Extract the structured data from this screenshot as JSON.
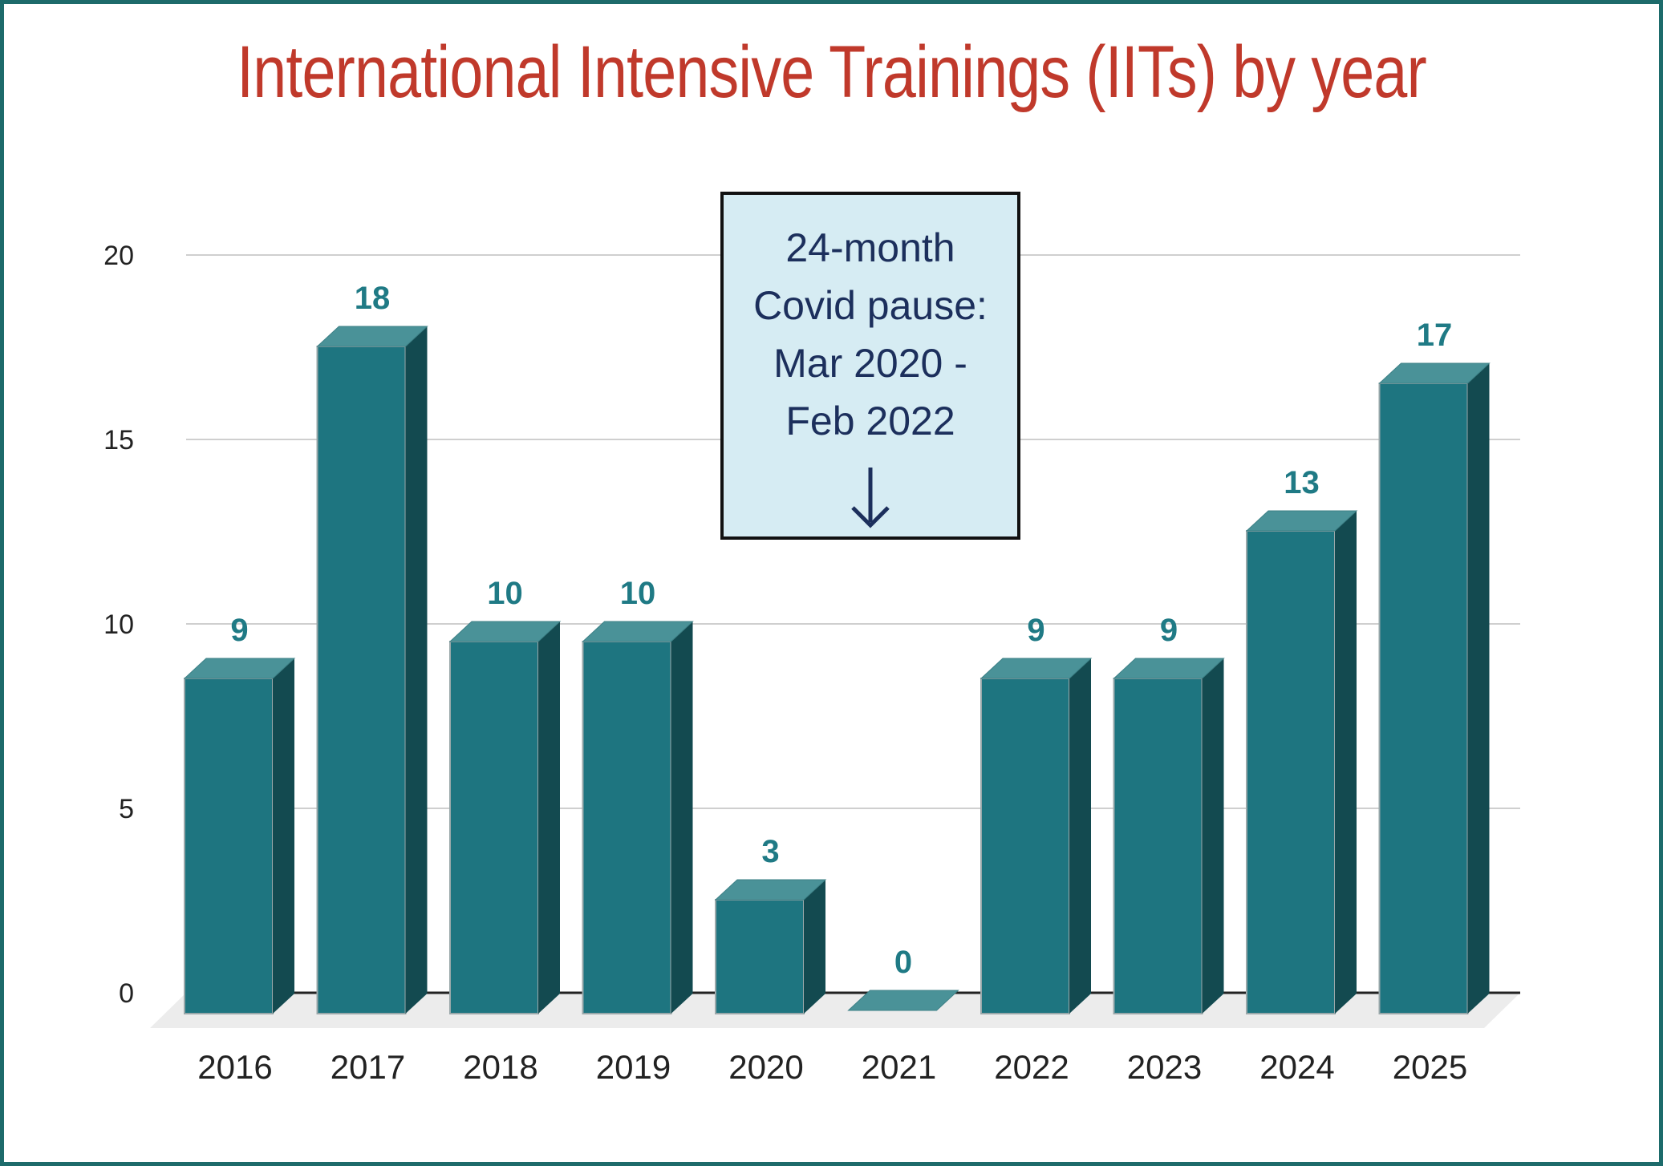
{
  "title": "International Intensive Trainings (IITs) by year",
  "annotation": {
    "text": "24-month\nCovid pause:\nMar 2020 -\nFeb 2022"
  },
  "colors": {
    "title": "#c0392b",
    "bar_front": "#1e7580",
    "bar_top": "#4a9298",
    "bar_side": "#134a50",
    "data_label": "#1f7a85",
    "annotation_fill": "#d6ecf3",
    "annotation_text": "#1c2f5c",
    "frame": "#1d6b6b"
  },
  "chart_data": {
    "type": "bar",
    "title": "International Intensive Trainings (IITs) by year",
    "categories": [
      "2016",
      "2017",
      "2018",
      "2019",
      "2020",
      "2021",
      "2022",
      "2023",
      "2024",
      "2025"
    ],
    "values": [
      9,
      18,
      10,
      10,
      3,
      0,
      9,
      9,
      13,
      17
    ],
    "data_labels": [
      "9",
      "18",
      "10",
      "10",
      "3",
      "0",
      "9",
      "9",
      "13",
      "17"
    ],
    "yticks": [
      "0",
      "5",
      "10",
      "15",
      "20"
    ],
    "ylim": [
      0,
      20
    ],
    "grid": true,
    "style": "3d"
  }
}
